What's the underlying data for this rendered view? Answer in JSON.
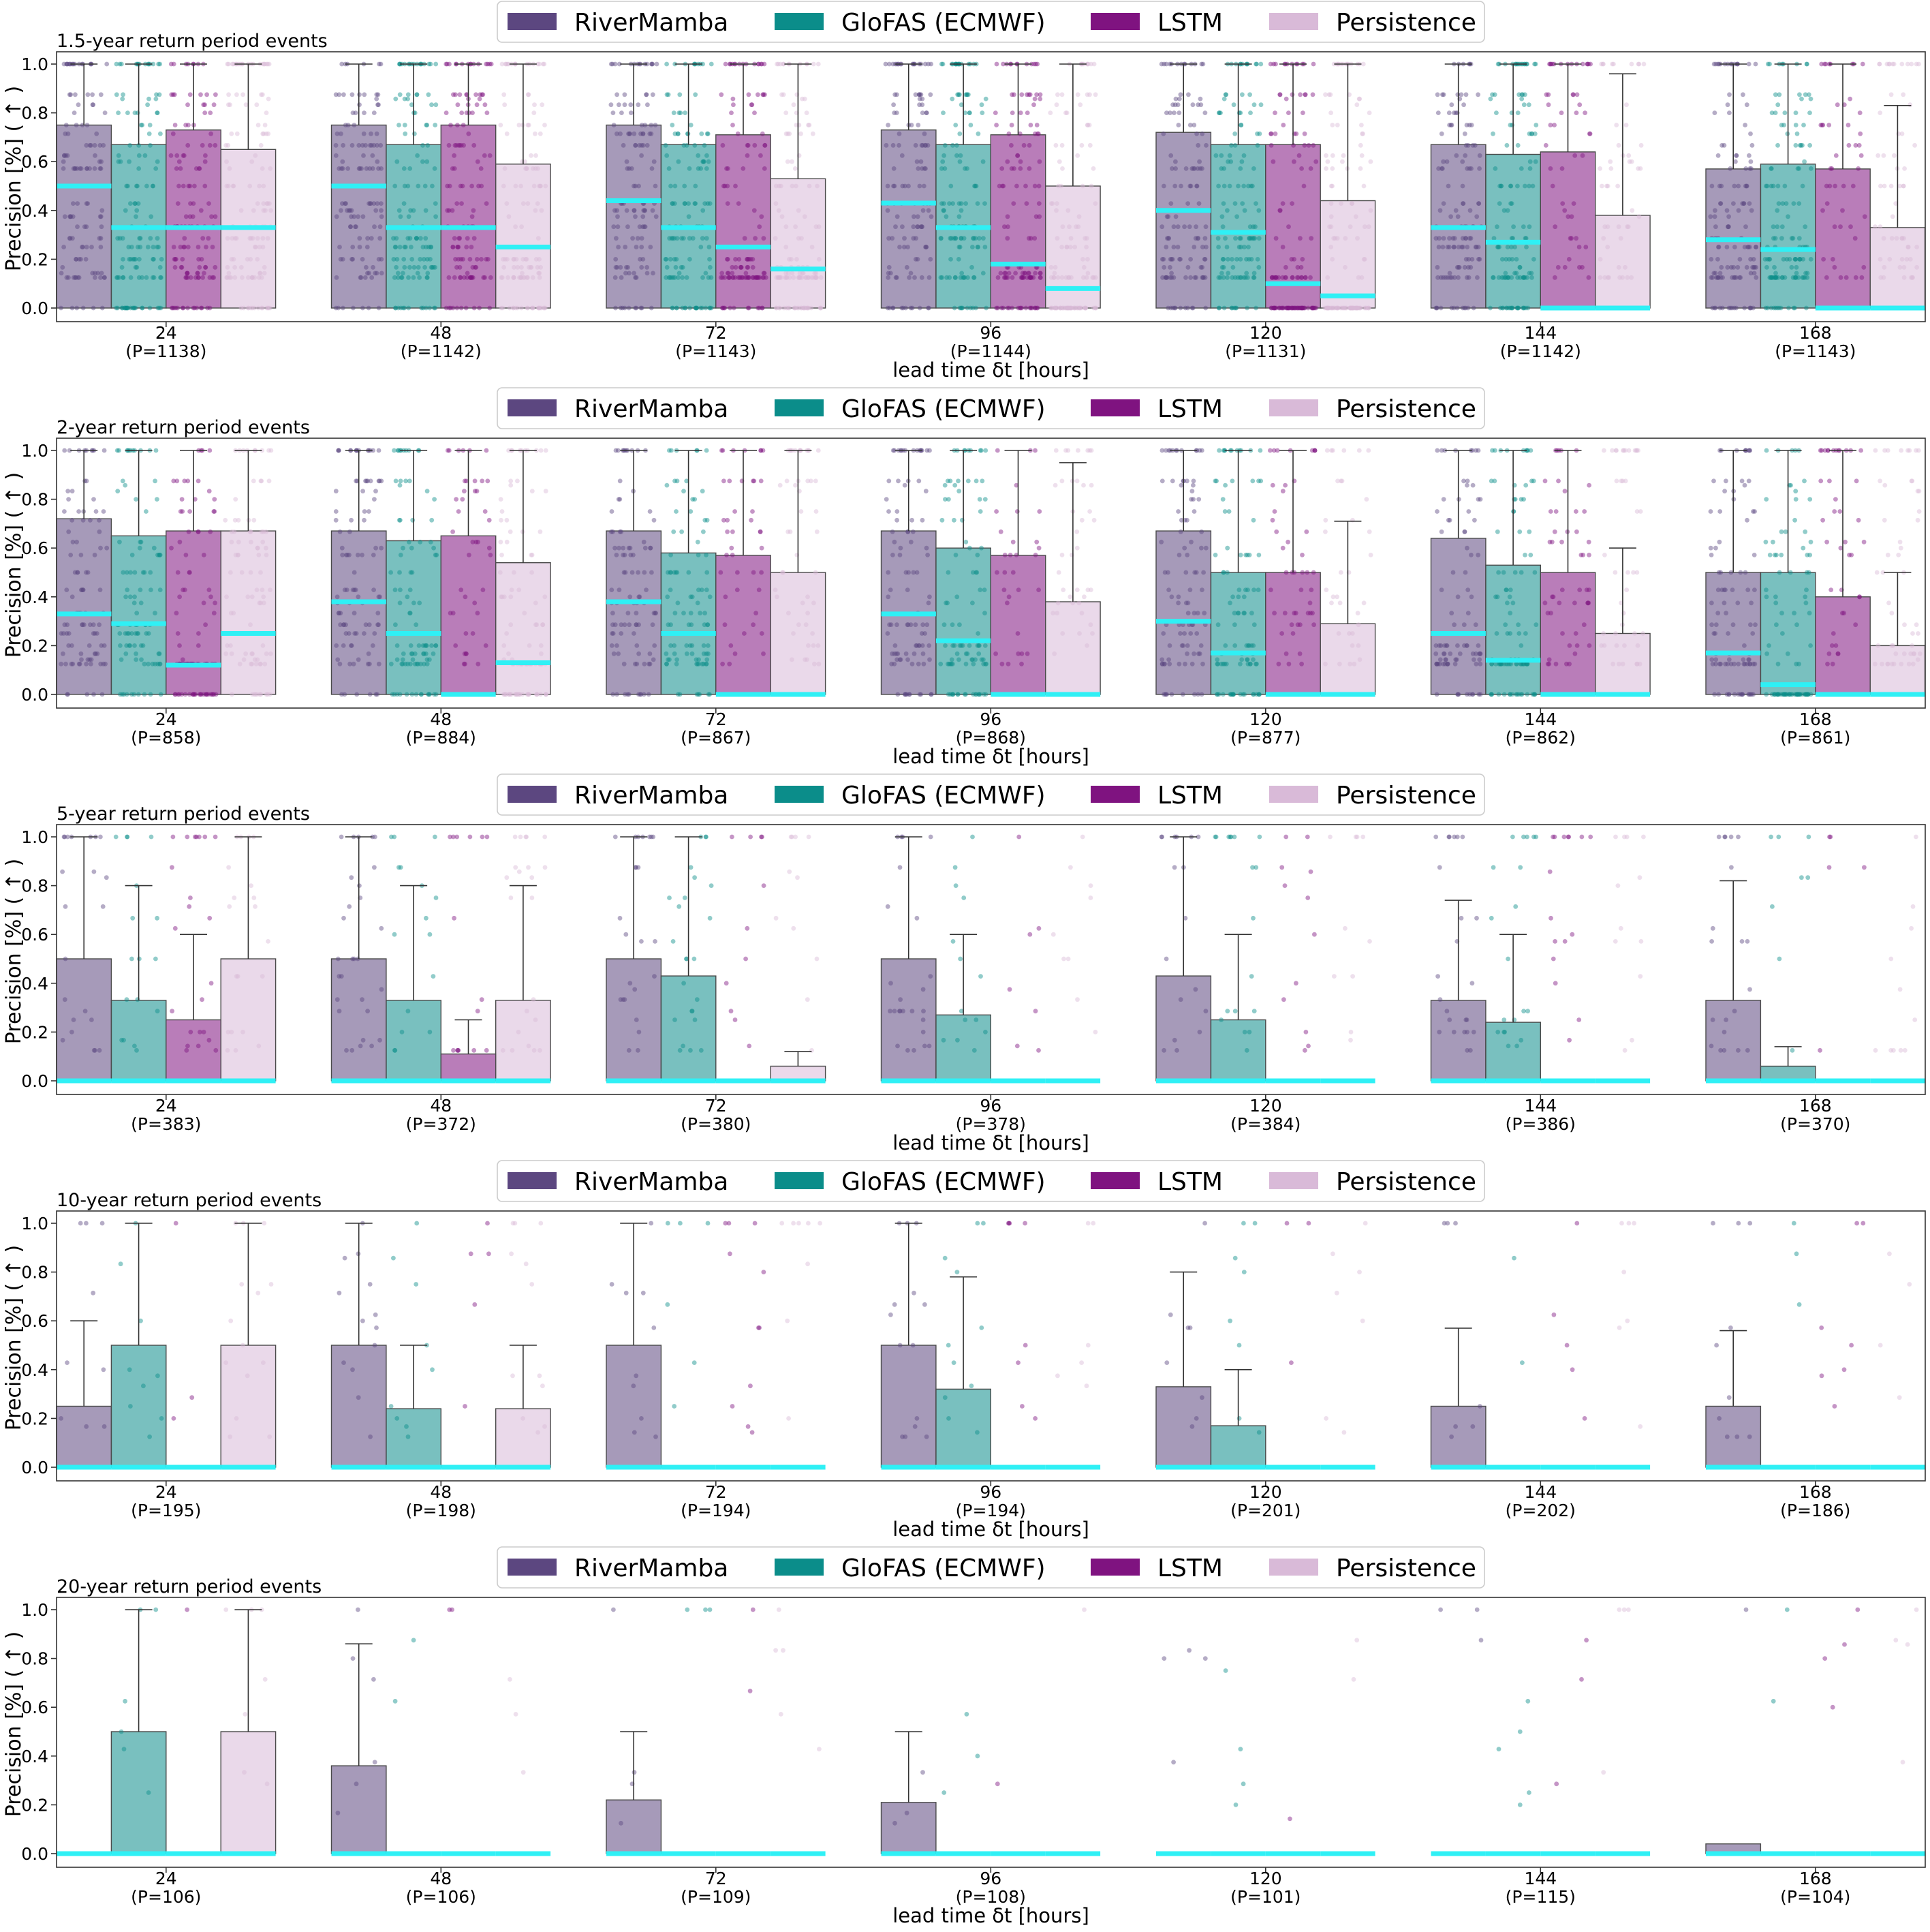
{
  "chart_data": [
    {
      "type": "bar",
      "title": "1.5-year return period events",
      "xlabel": "lead time δt [hours]",
      "ylabel": "Precision [%] ( ↑ )",
      "ylim": [
        0,
        1
      ],
      "yticks": [
        "0.0",
        "0.2",
        "0.4",
        "0.6",
        "0.8",
        "1.0"
      ],
      "legend_position": "top-center",
      "median_color": "#2ff0f5",
      "categories": [
        "24",
        "48",
        "72",
        "96",
        "120",
        "144",
        "168"
      ],
      "sample_counts": [
        "(P=1138)",
        "(P=1142)",
        "(P=1143)",
        "(P=1144)",
        "(P=1131)",
        "(P=1142)",
        "(P=1143)"
      ],
      "series": [
        {
          "name": "RiverMamba",
          "color": "#5c4780",
          "values": [
            0.75,
            0.75,
            0.75,
            0.73,
            0.72,
            0.67,
            0.57
          ],
          "median": [
            0.5,
            0.5,
            0.44,
            0.43,
            0.4,
            0.33,
            0.28
          ],
          "whisker_high": [
            1,
            1,
            1,
            1,
            1,
            1,
            1
          ]
        },
        {
          "name": "GloFAS (ECMWF)",
          "color": "#0b8d8a",
          "values": [
            0.67,
            0.67,
            0.67,
            0.67,
            0.67,
            0.63,
            0.59
          ],
          "median": [
            0.33,
            0.33,
            0.33,
            0.33,
            0.31,
            0.27,
            0.24
          ],
          "whisker_high": [
            1,
            1,
            1,
            1,
            1,
            1,
            1
          ]
        },
        {
          "name": "LSTM",
          "color": "#7f1380",
          "values": [
            0.73,
            0.75,
            0.71,
            0.71,
            0.67,
            0.64,
            0.57
          ],
          "median": [
            0.33,
            0.33,
            0.25,
            0.18,
            0.1,
            0.0,
            0.0
          ],
          "whisker_high": [
            1,
            1,
            1,
            1,
            1,
            1,
            1
          ]
        },
        {
          "name": "Persistence",
          "color": "#d9bad8",
          "values": [
            0.65,
            0.59,
            0.53,
            0.5,
            0.44,
            0.38,
            0.33
          ],
          "median": [
            0.33,
            0.25,
            0.16,
            0.08,
            0.05,
            0.0,
            0.0
          ],
          "whisker_high": [
            1,
            1,
            1,
            1,
            1,
            0.96,
            0.83
          ]
        }
      ]
    },
    {
      "type": "bar",
      "title": "2-year return period events",
      "xlabel": "lead time δt [hours]",
      "ylabel": "Precision [%] ( ↑ )",
      "ylim": [
        0,
        1
      ],
      "yticks": [
        "0.0",
        "0.2",
        "0.4",
        "0.6",
        "0.8",
        "1.0"
      ],
      "legend_position": "top-center",
      "median_color": "#2ff0f5",
      "categories": [
        "24",
        "48",
        "72",
        "96",
        "120",
        "144",
        "168"
      ],
      "sample_counts": [
        "(P=858)",
        "(P=884)",
        "(P=867)",
        "(P=868)",
        "(P=877)",
        "(P=862)",
        "(P=861)"
      ],
      "series": [
        {
          "name": "RiverMamba",
          "color": "#5c4780",
          "values": [
            0.72,
            0.67,
            0.67,
            0.67,
            0.67,
            0.64,
            0.5
          ],
          "median": [
            0.33,
            0.38,
            0.38,
            0.33,
            0.3,
            0.25,
            0.17
          ],
          "whisker_high": [
            1,
            1,
            1,
            1,
            1,
            1,
            1
          ]
        },
        {
          "name": "GloFAS (ECMWF)",
          "color": "#0b8d8a",
          "values": [
            0.65,
            0.63,
            0.58,
            0.6,
            0.5,
            0.53,
            0.5
          ],
          "median": [
            0.29,
            0.25,
            0.25,
            0.22,
            0.17,
            0.14,
            0.04
          ],
          "whisker_high": [
            1,
            1,
            1,
            1,
            1,
            1,
            1
          ]
        },
        {
          "name": "LSTM",
          "color": "#7f1380",
          "values": [
            0.67,
            0.65,
            0.57,
            0.57,
            0.5,
            0.5,
            0.4
          ],
          "median": [
            0.12,
            0.0,
            0.0,
            0.0,
            0.0,
            0.0,
            0.0
          ],
          "whisker_high": [
            1,
            1,
            1,
            1,
            1,
            1,
            1
          ]
        },
        {
          "name": "Persistence",
          "color": "#d9bad8",
          "values": [
            0.67,
            0.54,
            0.5,
            0.38,
            0.29,
            0.25,
            0.2
          ],
          "median": [
            0.25,
            0.13,
            0.0,
            0.0,
            0.0,
            0.0,
            0.0
          ],
          "whisker_high": [
            1,
            1,
            1,
            0.95,
            0.71,
            0.6,
            0.5
          ]
        }
      ]
    },
    {
      "type": "bar",
      "title": "5-year return period events",
      "xlabel": "lead time δt [hours]",
      "ylabel": "Precision [%] ( ↑ )",
      "ylim": [
        0,
        1
      ],
      "yticks": [
        "0.0",
        "0.2",
        "0.4",
        "0.6",
        "0.8",
        "1.0"
      ],
      "legend_position": "top-center",
      "median_color": "#2ff0f5",
      "categories": [
        "24",
        "48",
        "72",
        "96",
        "120",
        "144",
        "168"
      ],
      "sample_counts": [
        "(P=383)",
        "(P=372)",
        "(P=380)",
        "(P=378)",
        "(P=384)",
        "(P=386)",
        "(P=370)"
      ],
      "series": [
        {
          "name": "RiverMamba",
          "color": "#5c4780",
          "values": [
            0.5,
            0.5,
            0.5,
            0.5,
            0.43,
            0.33,
            0.33
          ],
          "median": [
            0,
            0,
            0,
            0,
            0,
            0,
            0
          ],
          "whisker_high": [
            1,
            1,
            1,
            1,
            1,
            0.74,
            0.82
          ]
        },
        {
          "name": "GloFAS (ECMWF)",
          "color": "#0b8d8a",
          "values": [
            0.33,
            0.33,
            0.43,
            0.27,
            0.25,
            0.24,
            0.06
          ],
          "median": [
            0,
            0,
            0,
            0,
            0,
            0,
            0
          ],
          "whisker_high": [
            0.8,
            0.8,
            1,
            0.6,
            0.6,
            0.6,
            0.14
          ]
        },
        {
          "name": "LSTM",
          "color": "#7f1380",
          "values": [
            0.25,
            0.11,
            0,
            0,
            0,
            0,
            0
          ],
          "median": [
            0,
            0,
            0,
            0,
            0,
            0,
            0
          ],
          "whisker_high": [
            0.6,
            0.25,
            0,
            0,
            0,
            0,
            0
          ]
        },
        {
          "name": "Persistence",
          "color": "#d9bad8",
          "values": [
            0.5,
            0.33,
            0.06,
            0,
            0,
            0,
            0
          ],
          "median": [
            0,
            0,
            0,
            0,
            0,
            0,
            0
          ],
          "whisker_high": [
            1,
            0.8,
            0.12,
            0,
            0,
            0,
            0
          ]
        }
      ]
    },
    {
      "type": "bar",
      "title": "10-year return period events",
      "xlabel": "lead time δt [hours]",
      "ylabel": "Precision [%] ( ↑ )",
      "ylim": [
        0,
        1
      ],
      "yticks": [
        "0.0",
        "0.2",
        "0.4",
        "0.6",
        "0.8",
        "1.0"
      ],
      "legend_position": "top-center",
      "median_color": "#2ff0f5",
      "categories": [
        "24",
        "48",
        "72",
        "96",
        "120",
        "144",
        "168"
      ],
      "sample_counts": [
        "(P=195)",
        "(P=198)",
        "(P=194)",
        "(P=194)",
        "(P=201)",
        "(P=202)",
        "(P=186)"
      ],
      "series": [
        {
          "name": "RiverMamba",
          "color": "#5c4780",
          "values": [
            0.25,
            0.5,
            0.5,
            0.5,
            0.33,
            0.25,
            0.25
          ],
          "median": [
            0,
            0,
            0,
            0,
            0,
            0,
            0
          ],
          "whisker_high": [
            0.6,
            1,
            1,
            1,
            0.8,
            0.57,
            0.56
          ]
        },
        {
          "name": "GloFAS (ECMWF)",
          "color": "#0b8d8a",
          "values": [
            0.5,
            0.24,
            0,
            0.32,
            0.17,
            0,
            0
          ],
          "median": [
            0,
            0,
            0,
            0,
            0,
            0,
            0
          ],
          "whisker_high": [
            1,
            0.5,
            0,
            0.78,
            0.4,
            0,
            0
          ]
        },
        {
          "name": "LSTM",
          "color": "#7f1380",
          "values": [
            0,
            0,
            0,
            0,
            0,
            0,
            0
          ],
          "median": [
            0,
            0,
            0,
            0,
            0,
            0,
            0
          ],
          "whisker_high": [
            0,
            0,
            0,
            0,
            0,
            0,
            0
          ]
        },
        {
          "name": "Persistence",
          "color": "#d9bad8",
          "values": [
            0.5,
            0.24,
            0,
            0,
            0,
            0,
            0
          ],
          "median": [
            0,
            0,
            0,
            0,
            0,
            0,
            0
          ],
          "whisker_high": [
            1,
            0.5,
            0,
            0,
            0,
            0,
            0
          ]
        }
      ]
    },
    {
      "type": "bar",
      "title": "20-year return period events",
      "xlabel": "lead time δt [hours]",
      "ylabel": "Precision [%] ( ↑ )",
      "ylim": [
        0,
        1
      ],
      "yticks": [
        "0.0",
        "0.2",
        "0.4",
        "0.6",
        "0.8",
        "1.0"
      ],
      "legend_position": "top-center",
      "median_color": "#2ff0f5",
      "categories": [
        "24",
        "48",
        "72",
        "96",
        "120",
        "144",
        "168"
      ],
      "sample_counts": [
        "(P=106)",
        "(P=106)",
        "(P=109)",
        "(P=108)",
        "(P=101)",
        "(P=115)",
        "(P=104)"
      ],
      "series": [
        {
          "name": "RiverMamba",
          "color": "#5c4780",
          "values": [
            0,
            0.36,
            0.22,
            0.21,
            0,
            0,
            0.04
          ],
          "median": [
            0,
            0,
            0,
            0,
            0,
            0,
            0
          ],
          "whisker_high": [
            0,
            0.86,
            0.5,
            0.5,
            0,
            0,
            0.04
          ]
        },
        {
          "name": "GloFAS (ECMWF)",
          "color": "#0b8d8a",
          "values": [
            0.5,
            0,
            0,
            0,
            0,
            0,
            0
          ],
          "median": [
            0,
            0,
            0,
            0,
            0,
            0,
            0
          ],
          "whisker_high": [
            1,
            0,
            0,
            0,
            0,
            0,
            0
          ]
        },
        {
          "name": "LSTM",
          "color": "#7f1380",
          "values": [
            0,
            0,
            0,
            0,
            0,
            0,
            0
          ],
          "median": [
            0,
            0,
            0,
            0,
            0,
            0,
            0
          ],
          "whisker_high": [
            0,
            0,
            0,
            0,
            0,
            0,
            0
          ]
        },
        {
          "name": "Persistence",
          "color": "#d9bad8",
          "values": [
            0.5,
            0,
            0,
            0,
            0,
            0,
            0
          ],
          "median": [
            0,
            0,
            0,
            0,
            0,
            0,
            0
          ],
          "whisker_high": [
            1,
            0,
            0,
            0,
            0,
            0,
            0
          ]
        }
      ]
    }
  ]
}
